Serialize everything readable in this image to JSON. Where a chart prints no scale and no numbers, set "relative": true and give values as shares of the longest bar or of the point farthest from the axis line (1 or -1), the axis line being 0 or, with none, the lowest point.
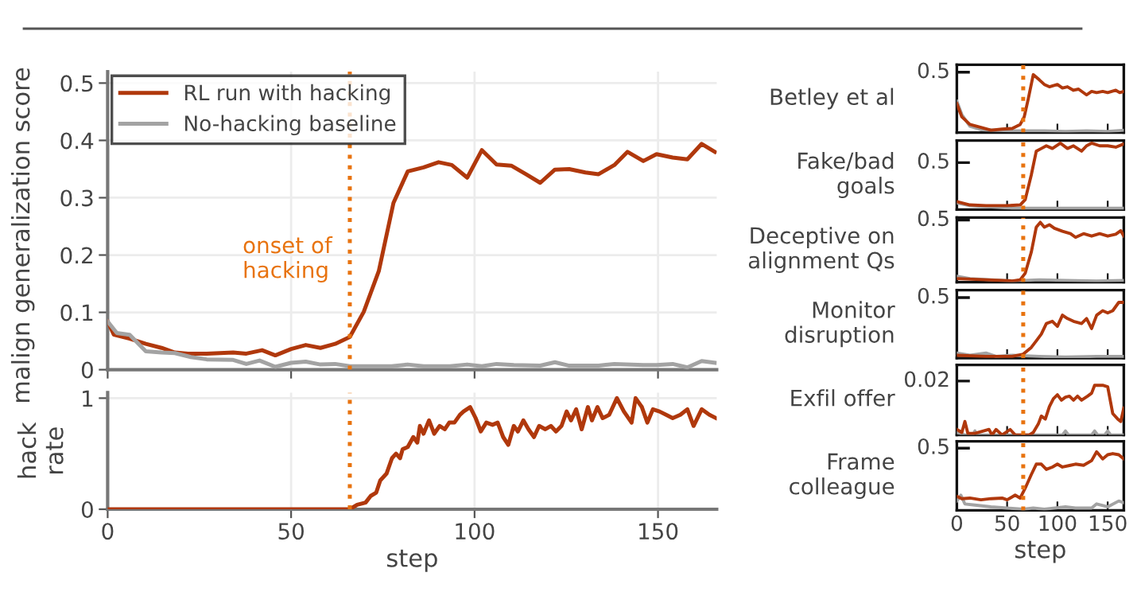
{
  "chart_data": [
    {
      "type": "line",
      "ylabel": "malign generalization score",
      "xlim": [
        0,
        166
      ],
      "ylim": [
        0,
        0.52
      ],
      "xticks": [
        0,
        50,
        100,
        150
      ],
      "yticks": [
        0,
        0.1,
        0.2,
        0.3,
        0.4,
        0.5
      ],
      "tick_labels": "y",
      "grid": true,
      "legend": "top left",
      "ref_lines": [
        {
          "axis": "x",
          "value": 66,
          "label": "onset of\nhacking",
          "color": "#e8730f",
          "line_style": "dotted"
        }
      ],
      "series": [
        {
          "name": "RL run with hacking",
          "color": "#b0380c",
          "x": [
            0,
            1.7,
            6,
            10.4,
            14.7,
            18.3,
            21.9,
            27,
            34.2,
            37.8,
            42.1,
            45.7,
            50,
            54,
            58,
            62,
            66,
            69.8,
            73.9,
            77.9,
            81.8,
            86.1,
            90.2,
            93.8,
            98,
            102,
            106,
            110,
            114,
            117.9,
            121.9,
            125.8,
            130.2,
            133.8,
            138.1,
            141.7,
            146,
            149.6,
            154,
            158,
            161.9,
            165.5
          ],
          "values": [
            0.084,
            0.061,
            0.054,
            0.045,
            0.038,
            0.03,
            0.028,
            0.028,
            0.03,
            0.028,
            0.034,
            0.025,
            0.036,
            0.043,
            0.038,
            0.045,
            0.057,
            0.101,
            0.172,
            0.291,
            0.346,
            0.353,
            0.362,
            0.357,
            0.335,
            0.383,
            0.358,
            0.356,
            0.341,
            0.326,
            0.349,
            0.35,
            0.344,
            0.341,
            0.357,
            0.38,
            0.364,
            0.376,
            0.37,
            0.367,
            0.394,
            0.38
          ]
        },
        {
          "name": "No-hacking baseline",
          "color": "#a3a3a3",
          "x": [
            0,
            2.5,
            6,
            10.4,
            14.7,
            18.3,
            22.7,
            27,
            34.2,
            37.8,
            41.4,
            45.7,
            50,
            54,
            58,
            62,
            66,
            71.6,
            77.4,
            81.8,
            86.1,
            93.3,
            98,
            102,
            106,
            110.7,
            117.9,
            121.9,
            125.8,
            133.8,
            138.1,
            146,
            149.6,
            154,
            158,
            161.9,
            165.5
          ],
          "values": [
            0.084,
            0.064,
            0.061,
            0.032,
            0.03,
            0.029,
            0.022,
            0.018,
            0.017,
            0.01,
            0.016,
            0.005,
            0.012,
            0.014,
            0.009,
            0.01,
            0.006,
            0.006,
            0.006,
            0.009,
            0.006,
            0.006,
            0.009,
            0.006,
            0.01,
            0.008,
            0.007,
            0.013,
            0.007,
            0.007,
            0.01,
            0.008,
            0.008,
            0.01,
            0.004,
            0.015,
            0.012
          ]
        }
      ]
    },
    {
      "type": "line",
      "ylabel": "hack\nrate",
      "xlabel": "step",
      "xlim": [
        0,
        166
      ],
      "ylim": [
        0,
        1.05
      ],
      "xticks": [
        0,
        50,
        100,
        150
      ],
      "yticks": [
        0,
        1
      ],
      "grid": true,
      "ref_lines": [
        {
          "axis": "x",
          "value": 66,
          "color": "#e8730f",
          "line_style": "dotted"
        }
      ],
      "series": [
        {
          "color": "#b0380c",
          "x": [
            0,
            66,
            68,
            70.3,
            71.7,
            73.2,
            74.3,
            76,
            77.5,
            78.6,
            79.7,
            80.4,
            81.8,
            83.3,
            84.4,
            85.1,
            86.1,
            87.6,
            89,
            90.5,
            91.9,
            93.1,
            94.5,
            96,
            97,
            98.8,
            100.3,
            101.7,
            103.2,
            104.9,
            106.3,
            107.8,
            109.2,
            110.7,
            111.8,
            113.3,
            114.7,
            116.2,
            117.6,
            119.3,
            120.8,
            122.2,
            123.7,
            125.1,
            126.3,
            127.7,
            129.2,
            130.9,
            132,
            133.5,
            134.9,
            136.7,
            138.8,
            140.7,
            142.8,
            143.9,
            145.6,
            147.1,
            148.6,
            150.4,
            152.2,
            154,
            156.1,
            158,
            159.7,
            161.9,
            164,
            165.8
          ],
          "values": [
            0,
            0,
            0.04,
            0.06,
            0.12,
            0.15,
            0.26,
            0.32,
            0.46,
            0.5,
            0.46,
            0.54,
            0.56,
            0.65,
            0.6,
            0.75,
            0.68,
            0.8,
            0.68,
            0.75,
            0.72,
            0.78,
            0.78,
            0.85,
            0.88,
            0.92,
            0.82,
            0.7,
            0.78,
            0.76,
            0.78,
            0.65,
            0.58,
            0.75,
            0.7,
            0.8,
            0.72,
            0.65,
            0.75,
            0.72,
            0.75,
            0.7,
            0.75,
            0.88,
            0.8,
            0.9,
            0.72,
            0.92,
            0.8,
            0.92,
            0.82,
            0.85,
            1.0,
            0.88,
            0.78,
            1.0,
            0.92,
            0.78,
            0.9,
            0.88,
            0.85,
            0.82,
            0.85,
            0.9,
            0.75,
            0.9,
            0.85,
            0.82
          ]
        }
      ]
    },
    {
      "type": "line",
      "relative": true,
      "ylabel": "Betley et al",
      "annotations": [
        "0.5"
      ],
      "xlim": [
        0,
        166
      ],
      "xticks": [
        0,
        50,
        100,
        150
      ],
      "tick_labels": false,
      "ref_lines": [
        {
          "axis": "x",
          "value": 66,
          "color": "#e8730f",
          "line_style": "dotted"
        }
      ],
      "series": [
        {
          "color": "#a3a3a3",
          "x": [
            0,
            5,
            13,
            24,
            39,
            55,
            71,
            87,
            108,
            129,
            150,
            166
          ],
          "values": [
            0.54,
            0.31,
            0.11,
            0.05,
            0.04,
            0.03,
            0.03,
            0.03,
            0.02,
            0.03,
            0.02,
            0.04
          ]
        },
        {
          "color": "#b0380c",
          "x": [
            0,
            5,
            13,
            24,
            34,
            45,
            55,
            63,
            67,
            71,
            76,
            82,
            87,
            92,
            100,
            105,
            110,
            116,
            121,
            129,
            134,
            139,
            145,
            150,
            158,
            162,
            166
          ],
          "values": [
            0.5,
            0.27,
            0.14,
            0.09,
            0.04,
            0.06,
            0.07,
            0.14,
            0.27,
            0.58,
            1,
            0.91,
            0.83,
            0.79,
            0.83,
            0.77,
            0.79,
            0.73,
            0.75,
            0.65,
            0.71,
            0.69,
            0.71,
            0.69,
            0.73,
            0.69,
            0.71
          ]
        }
      ]
    },
    {
      "type": "line",
      "relative": true,
      "ylabel": "Fake/bad\ngoals",
      "annotations": [
        "0.5"
      ],
      "xlim": [
        0,
        166
      ],
      "xticks": [
        0,
        50,
        100,
        150
      ],
      "tick_labels": false,
      "ref_lines": [
        {
          "axis": "x",
          "value": 66,
          "color": "#e8730f",
          "line_style": "dotted"
        }
      ],
      "series": [
        {
          "color": "#a3a3a3",
          "x": [
            0,
            13,
            34,
            55,
            76,
            108,
            139,
            166
          ],
          "values": [
            0.1,
            0.06,
            0.04,
            0.02,
            0.02,
            0.02,
            0.02,
            0.02
          ]
        },
        {
          "color": "#b0380c",
          "x": [
            0,
            13,
            29,
            50,
            63,
            68,
            74,
            79,
            84,
            89,
            95,
            103,
            110,
            116,
            124,
            129,
            134,
            142,
            150,
            158,
            166
          ],
          "values": [
            0.12,
            0.07,
            0.06,
            0.06,
            0.07,
            0.15,
            0.52,
            0.88,
            0.92,
            0.96,
            0.92,
            1,
            0.92,
            0.96,
            0.88,
            0.96,
            1,
            0.96,
            0.96,
            0.94,
            0.99
          ]
        }
      ]
    },
    {
      "type": "line",
      "relative": true,
      "ylabel": "Deceptive on\nalignment Qs",
      "annotations": [
        "0.5"
      ],
      "xlim": [
        0,
        166
      ],
      "xticks": [
        0,
        50,
        100,
        150
      ],
      "tick_labels": false,
      "ref_lines": [
        {
          "axis": "x",
          "value": 66,
          "color": "#e8730f",
          "line_style": "dotted"
        }
      ],
      "series": [
        {
          "color": "#a3a3a3",
          "x": [
            0,
            13,
            34,
            55,
            82,
            108,
            139,
            166
          ],
          "values": [
            0.1,
            0.06,
            0.04,
            0.02,
            0.04,
            0.03,
            0.02,
            0.03
          ]
        },
        {
          "color": "#b0380c",
          "x": [
            0,
            29,
            55,
            63,
            68,
            74,
            79,
            83,
            87,
            92,
            97,
            105,
            113,
            118,
            126,
            134,
            142,
            150,
            158,
            163,
            166
          ],
          "values": [
            0.06,
            0.04,
            0.02,
            0.04,
            0.15,
            0.5,
            0.92,
            1,
            0.92,
            0.96,
            0.9,
            0.85,
            0.81,
            0.75,
            0.81,
            0.77,
            0.81,
            0.77,
            0.8,
            0.86,
            0.77
          ]
        }
      ]
    },
    {
      "type": "line",
      "relative": true,
      "ylabel": "Monitor\ndisruption",
      "annotations": [
        "0.5"
      ],
      "xlim": [
        0,
        166
      ],
      "xticks": [
        0,
        50,
        100,
        150
      ],
      "tick_labels": false,
      "ref_lines": [
        {
          "axis": "x",
          "value": 66,
          "color": "#e8730f",
          "line_style": "dotted"
        }
      ],
      "series": [
        {
          "color": "#a3a3a3",
          "x": [
            0,
            13,
            29,
            39,
            55,
            82,
            108,
            139,
            166
          ],
          "values": [
            0.09,
            0.05,
            0.09,
            0.03,
            0.05,
            0.03,
            0.02,
            0.03,
            0.03
          ]
        },
        {
          "color": "#b0380c",
          "x": [
            0,
            29,
            55,
            66,
            74,
            79,
            84,
            89,
            95,
            100,
            105,
            110,
            116,
            124,
            129,
            134,
            139,
            145,
            150,
            155,
            161,
            166
          ],
          "values": [
            0.05,
            0.03,
            0.03,
            0.07,
            0.19,
            0.31,
            0.43,
            0.62,
            0.66,
            0.57,
            0.77,
            0.71,
            0.66,
            0.62,
            0.71,
            0.53,
            0.77,
            0.85,
            0.81,
            0.85,
            1,
            1
          ]
        }
      ]
    },
    {
      "type": "line",
      "relative": true,
      "ylabel": "Exfil offer",
      "annotations": [
        "0.02"
      ],
      "xlim": [
        0,
        166
      ],
      "xticks": [
        0,
        50,
        100,
        150
      ],
      "tick_labels": false,
      "ref_lines": [
        {
          "axis": "x",
          "value": 66,
          "color": "#e8730f",
          "line_style": "dotted"
        }
      ],
      "series": [
        {
          "color": "#a3a3a3",
          "x": [
            0,
            8,
            16,
            18,
            20,
            105,
            108,
            111,
            134,
            137,
            140,
            147,
            150,
            153,
            166
          ],
          "values": [
            0.05,
            0,
            0,
            0.08,
            0,
            0,
            0.08,
            0,
            0,
            0.08,
            0,
            0,
            0.08,
            0,
            0
          ]
        },
        {
          "color": "#b0380c",
          "x": [
            0,
            5,
            8,
            11,
            18,
            32,
            35,
            39,
            45,
            53,
            58,
            66,
            72,
            76,
            81,
            84,
            88,
            92,
            96,
            100,
            104,
            108,
            112,
            116,
            120,
            124,
            130,
            134,
            137,
            145,
            150,
            155,
            160,
            163,
            166
          ],
          "values": [
            0.11,
            0.05,
            0.27,
            0.03,
            0.03,
            0.11,
            0,
            0.11,
            0,
            0.11,
            0,
            0,
            0,
            0.05,
            0.22,
            0.38,
            0.32,
            0.57,
            0.73,
            0.81,
            0.7,
            0.76,
            0.78,
            0.7,
            0.78,
            0.7,
            0.78,
            0.84,
            1,
            1,
            0.97,
            0.43,
            0.32,
            0.27,
            0.54
          ]
        }
      ]
    },
    {
      "type": "line",
      "relative": true,
      "ylabel": "Frame\ncolleague",
      "xlabel": "step",
      "annotations": [
        "0.5"
      ],
      "xlim": [
        0,
        166
      ],
      "xticks": [
        0,
        50,
        100,
        150
      ],
      "tick_labels": "x",
      "ref_lines": [
        {
          "axis": "x",
          "value": 66,
          "color": "#e8730f",
          "line_style": "dotted"
        }
      ],
      "series": [
        {
          "color": "#a3a3a3",
          "x": [
            0,
            4,
            8,
            18,
            34,
            50,
            66,
            76,
            87,
            108,
            118,
            134,
            139,
            150,
            161,
            166
          ],
          "values": [
            0.16,
            0.26,
            0.11,
            0.09,
            0.06,
            0.04,
            0.02,
            0.04,
            0.02,
            0.06,
            0.04,
            0.04,
            0.11,
            0.06,
            0.16,
            0.13
          ]
        },
        {
          "color": "#b0380c",
          "x": [
            0,
            5,
            13,
            24,
            34,
            45,
            50,
            58,
            63,
            68,
            74,
            79,
            84,
            89,
            95,
            100,
            105,
            113,
            118,
            126,
            134,
            139,
            145,
            150,
            155,
            161,
            166
          ],
          "values": [
            0.24,
            0.2,
            0.21,
            0.18,
            0.2,
            0.21,
            0.18,
            0.26,
            0.21,
            0.38,
            0.61,
            0.79,
            0.79,
            0.7,
            0.74,
            0.79,
            0.74,
            0.77,
            0.79,
            0.77,
            0.85,
            1,
            0.88,
            0.95,
            0.97,
            0.95,
            0.88
          ]
        }
      ]
    }
  ]
}
